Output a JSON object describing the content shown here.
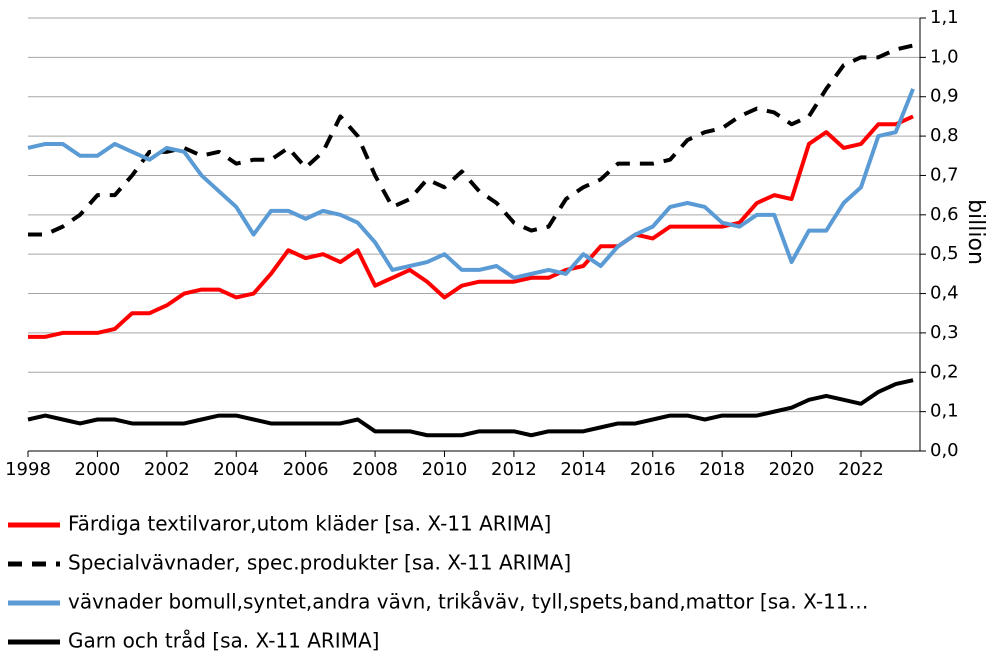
{
  "chart_data": {
    "type": "line",
    "y_label": "billion",
    "x": [
      1998,
      1998.5,
      1999,
      1999.5,
      2000,
      2000.5,
      2001,
      2001.5,
      2002,
      2002.5,
      2003,
      2003.5,
      2004,
      2004.5,
      2005,
      2005.5,
      2006,
      2006.5,
      2007,
      2007.5,
      2008,
      2008.5,
      2009,
      2009.5,
      2010,
      2010.5,
      2011,
      2011.5,
      2012,
      2012.5,
      2013,
      2013.5,
      2014,
      2014.5,
      2015,
      2015.5,
      2016,
      2016.5,
      2017,
      2017.5,
      2018,
      2018.5,
      2019,
      2019.5,
      2020,
      2020.5,
      2021,
      2021.5,
      2022,
      2022.5,
      2023,
      2023.5
    ],
    "xlim": [
      1998,
      2023.7
    ],
    "xticks": [
      1998,
      2000,
      2002,
      2004,
      2006,
      2008,
      2010,
      2012,
      2014,
      2016,
      2018,
      2020,
      2022
    ],
    "ylim": [
      0,
      1.1
    ],
    "yticks": [
      {
        "value": 0,
        "label": "0,0"
      },
      {
        "value": 0.1,
        "label": "0,1"
      },
      {
        "value": 0.2,
        "label": "0,2"
      },
      {
        "value": 0.3,
        "label": "0,3"
      },
      {
        "value": 0.4,
        "label": "0,4"
      },
      {
        "value": 0.5,
        "label": "0,5"
      },
      {
        "value": 0.6,
        "label": "0,6"
      },
      {
        "value": 0.7,
        "label": "0,7"
      },
      {
        "value": 0.8,
        "label": "0,8"
      },
      {
        "value": 0.9,
        "label": "0,9"
      },
      {
        "value": 1.0,
        "label": "1,0"
      },
      {
        "value": 1.1,
        "label": "1,1"
      }
    ],
    "grid": true,
    "series": [
      {
        "name": "Färdiga textilvaror,utom kläder [sa. X-11 ARIMA]",
        "color": "#ff0000",
        "style": "solid",
        "values": [
          0.29,
          0.29,
          0.3,
          0.3,
          0.3,
          0.31,
          0.35,
          0.35,
          0.37,
          0.4,
          0.41,
          0.41,
          0.39,
          0.4,
          0.45,
          0.51,
          0.49,
          0.5,
          0.48,
          0.51,
          0.42,
          0.44,
          0.46,
          0.43,
          0.39,
          0.42,
          0.43,
          0.43,
          0.43,
          0.44,
          0.44,
          0.46,
          0.47,
          0.52,
          0.52,
          0.55,
          0.54,
          0.57,
          0.57,
          0.57,
          0.57,
          0.58,
          0.63,
          0.65,
          0.64,
          0.78,
          0.81,
          0.77,
          0.78,
          0.83,
          0.83,
          0.85
        ]
      },
      {
        "name": "Specialvävnader, spec.produkter [sa. X-11 ARIMA]",
        "color": "#000000",
        "style": "dashed",
        "values": [
          0.55,
          0.55,
          0.57,
          0.6,
          0.65,
          0.65,
          0.7,
          0.76,
          0.76,
          0.77,
          0.75,
          0.76,
          0.73,
          0.74,
          0.74,
          0.77,
          0.72,
          0.76,
          0.85,
          0.8,
          0.7,
          0.62,
          0.64,
          0.69,
          0.67,
          0.71,
          0.66,
          0.63,
          0.58,
          0.56,
          0.57,
          0.64,
          0.67,
          0.69,
          0.73,
          0.73,
          0.73,
          0.74,
          0.79,
          0.81,
          0.82,
          0.85,
          0.87,
          0.86,
          0.83,
          0.85,
          0.92,
          0.98,
          1.0,
          1.0,
          1.02,
          1.03
        ]
      },
      {
        "name": "vävnader bomull,syntet,andra vävn, trikåväv, tyll,spets,band,mattor [sa. X-11…",
        "color": "#5b9bd5",
        "style": "solid",
        "values": [
          0.77,
          0.78,
          0.78,
          0.75,
          0.75,
          0.78,
          0.76,
          0.74,
          0.77,
          0.76,
          0.7,
          0.66,
          0.62,
          0.55,
          0.61,
          0.61,
          0.59,
          0.61,
          0.6,
          0.58,
          0.53,
          0.46,
          0.47,
          0.48,
          0.5,
          0.46,
          0.46,
          0.47,
          0.44,
          0.45,
          0.46,
          0.45,
          0.5,
          0.47,
          0.52,
          0.55,
          0.57,
          0.62,
          0.63,
          0.62,
          0.58,
          0.57,
          0.6,
          0.6,
          0.48,
          0.56,
          0.56,
          0.63,
          0.67,
          0.8,
          0.81,
          0.92
        ]
      },
      {
        "name": "Garn och tråd [sa. X-11 ARIMA]",
        "color": "#000000",
        "style": "solid",
        "values": [
          0.08,
          0.09,
          0.08,
          0.07,
          0.08,
          0.08,
          0.07,
          0.07,
          0.07,
          0.07,
          0.08,
          0.09,
          0.09,
          0.08,
          0.07,
          0.07,
          0.07,
          0.07,
          0.07,
          0.08,
          0.05,
          0.05,
          0.05,
          0.04,
          0.04,
          0.04,
          0.05,
          0.05,
          0.05,
          0.04,
          0.05,
          0.05,
          0.05,
          0.06,
          0.07,
          0.07,
          0.08,
          0.09,
          0.09,
          0.08,
          0.09,
          0.09,
          0.09,
          0.1,
          0.11,
          0.13,
          0.14,
          0.13,
          0.12,
          0.15,
          0.17,
          0.18
        ]
      }
    ]
  }
}
